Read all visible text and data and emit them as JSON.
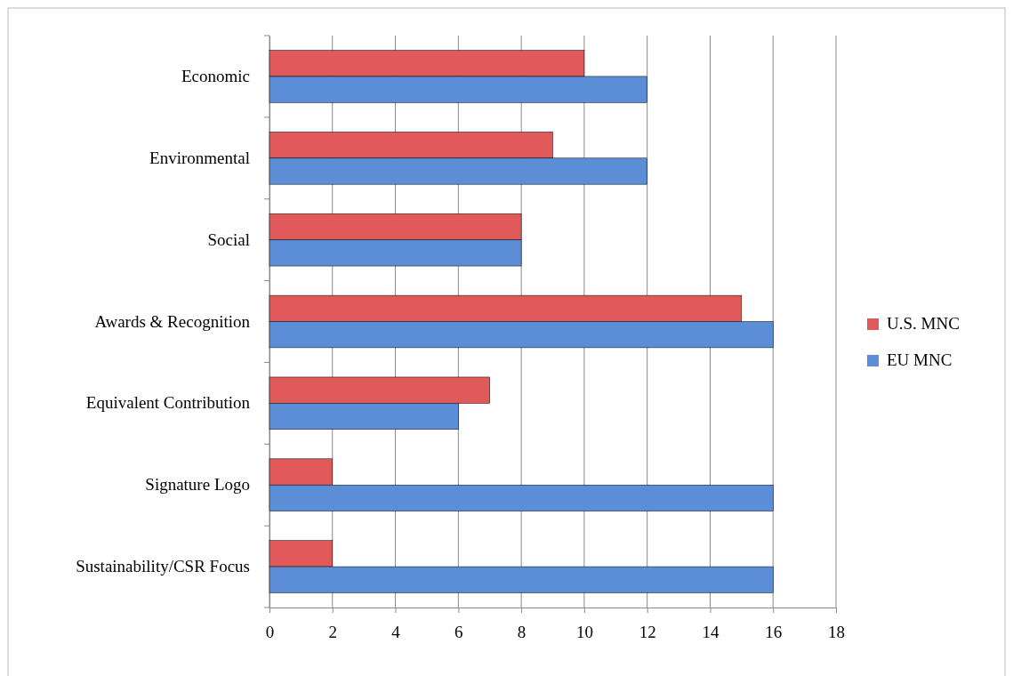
{
  "chart_data": {
    "type": "bar",
    "orientation": "horizontal",
    "categories": [
      "Economic",
      "Environmental",
      "Social",
      "Awards & Recognition",
      "Equivalent Contribution",
      "Signature Logo",
      "Sustainability/CSR Focus"
    ],
    "series": [
      {
        "name": "U.S. MNC",
        "color": "#e05a5a",
        "values": [
          10,
          9,
          8,
          15,
          7,
          2,
          2
        ]
      },
      {
        "name": "EU MNC",
        "color": "#5b8ed6",
        "values": [
          12,
          12,
          8,
          16,
          6,
          16,
          16
        ]
      }
    ],
    "xlim": [
      0,
      18
    ],
    "xticks": [
      0,
      2,
      4,
      6,
      8,
      10,
      12,
      14,
      16,
      18
    ],
    "grid": "x",
    "legend": "right"
  }
}
